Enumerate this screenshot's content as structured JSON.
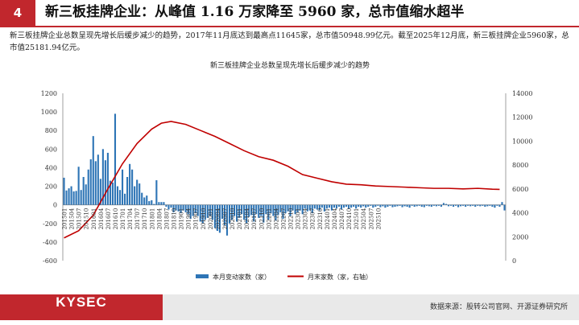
{
  "header": {
    "number": "4",
    "title": "新三板挂牌企业：从峰值 1.16 万家降至 5960 家，总市值缩水超半"
  },
  "summary": "新三板挂牌企业总数呈现先增长后缓步减少的趋势，2017年11月底达到最高点11645家，总市值50948.99亿元。截至2025年12月底，新三板挂牌企业5960家，总市值25181.94亿元。",
  "footer": {
    "logo": "KYSEC",
    "source": "数据来源：股转公司官网、开源证券研究所"
  },
  "colors": {
    "accent": "#c1272d",
    "bar": "#2e75b6",
    "line": "#c00000"
  },
  "chart_data": {
    "type": "bar",
    "title": "新三板挂牌企业总数呈现先增长后缓步减少的趋势",
    "x_tick_labels": [
      "201501",
      "201504",
      "201507",
      "201510",
      "201601",
      "201604",
      "201607",
      "201610",
      "201701",
      "201704",
      "201707",
      "201710",
      "201801",
      "201804",
      "201807",
      "201810",
      "201901",
      "201904",
      "201907",
      "201910",
      "202001",
      "202004",
      "202007",
      "202010",
      "202101",
      "202104",
      "202107",
      "202110",
      "202201",
      "202204",
      "202207",
      "202210",
      "202301",
      "202304",
      "202307",
      "202310",
      "202401",
      "202404",
      "202407",
      "202410",
      "202501",
      "202504",
      "202507",
      "202510"
    ],
    "y_left": {
      "ticks": [
        -600,
        -400,
        -200,
        0,
        200,
        400,
        600,
        800,
        1000,
        1200
      ],
      "min": -600,
      "max": 1200
    },
    "y_right": {
      "ticks": [
        0,
        2000,
        4000,
        6000,
        8000,
        10000,
        12000,
        14000
      ],
      "min": 0,
      "max": 14000
    },
    "legend": {
      "position": "bottom",
      "bar_label": "本月变动家数（家）",
      "line_label": "月末家数（家，右轴）"
    },
    "series": [
      {
        "name": "本月变动家数（家）",
        "kind": "bar",
        "axis": "left",
        "values": [
          292,
          155,
          178,
          200,
          145,
          150,
          410,
          160,
          300,
          220,
          380,
          490,
          740,
          470,
          540,
          280,
          600,
          480,
          560,
          260,
          240,
          980,
          200,
          160,
          380,
          120,
          300,
          440,
          380,
          200,
          270,
          230,
          130,
          80,
          100,
          40,
          50,
          10,
          265,
          30,
          30,
          30,
          -20,
          -50,
          -30,
          -80,
          -60,
          -70,
          -90,
          -60,
          -80,
          -100,
          -150,
          -120,
          -90,
          -120,
          -180,
          -200,
          -160,
          -140,
          -120,
          -160,
          -250,
          -280,
          -300,
          -150,
          -220,
          -330,
          -200,
          -160,
          -120,
          -180,
          -140,
          -100,
          -160,
          -200,
          -130,
          -110,
          -180,
          -100,
          -140,
          -120,
          -190,
          -100,
          -160,
          -90,
          -120,
          -170,
          -110,
          -80,
          -150,
          -90,
          -70,
          -120,
          -60,
          -100,
          -80,
          -60,
          -100,
          -40,
          -70,
          -60,
          -90,
          -40,
          -50,
          -60,
          -30,
          -70,
          -40,
          -30,
          -60,
          -30,
          -40,
          -20,
          -50,
          -30,
          -20,
          -40,
          -30,
          -20,
          -40,
          -20,
          -30,
          -15,
          -30,
          -20,
          -10,
          -30,
          -20,
          -10,
          -25,
          -15,
          -30,
          -20,
          -10,
          -25,
          -20,
          -15,
          -10,
          -25,
          -15,
          -20,
          -30,
          -10,
          -20,
          -15,
          -10,
          -20,
          -25,
          -10,
          -15,
          -20,
          -10,
          -15,
          -10,
          -20,
          20,
          10,
          -15,
          -10,
          -20,
          -10,
          -25,
          -15,
          -10,
          -20,
          -10,
          -15,
          -10,
          -20,
          -10,
          -15,
          -10,
          -20,
          -15,
          -10,
          -20,
          -30,
          -10,
          -20,
          30,
          -60
        ]
      },
      {
        "name": "月末家数（家，右轴）",
        "kind": "line",
        "axis": "right",
        "points": [
          [
            0,
            1900
          ],
          [
            6,
            2500
          ],
          [
            12,
            3800
          ],
          [
            18,
            6000
          ],
          [
            24,
            8100
          ],
          [
            30,
            9800
          ],
          [
            36,
            11000
          ],
          [
            40,
            11500
          ],
          [
            44,
            11645
          ],
          [
            50,
            11400
          ],
          [
            56,
            10900
          ],
          [
            62,
            10400
          ],
          [
            68,
            9800
          ],
          [
            74,
            9200
          ],
          [
            80,
            8700
          ],
          [
            86,
            8400
          ],
          [
            92,
            7900
          ],
          [
            98,
            7200
          ],
          [
            104,
            6900
          ],
          [
            110,
            6600
          ],
          [
            116,
            6400
          ],
          [
            122,
            6350
          ],
          [
            128,
            6250
          ],
          [
            134,
            6200
          ],
          [
            140,
            6150
          ],
          [
            146,
            6100
          ],
          [
            152,
            6050
          ],
          [
            158,
            6050
          ],
          [
            164,
            6000
          ],
          [
            170,
            6050
          ],
          [
            176,
            5980
          ],
          [
            179,
            5960
          ]
        ]
      }
    ]
  }
}
